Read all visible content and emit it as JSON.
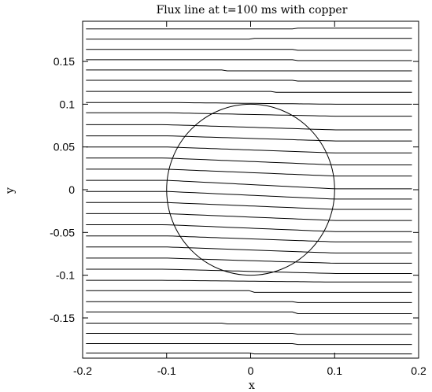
{
  "chart_data": {
    "type": "line",
    "title": "Flux line at t=100 ms with copper",
    "xlabel": "x",
    "ylabel": "y",
    "xlim": [
      -0.2,
      0.2
    ],
    "ylim": [
      -0.197,
      0.197
    ],
    "grid": false,
    "legend": "none",
    "x_ticks": [
      "-0.2",
      "-0.1",
      "0",
      "0.1",
      "0.2"
    ],
    "y_ticks": [
      "-0.15",
      "-0.1",
      "-0.05",
      "0",
      "0.05",
      "0.1",
      "0.15"
    ],
    "x_tick_values": [
      -0.2,
      -0.1,
      0,
      0.1,
      0.2
    ],
    "y_tick_values": [
      -0.15,
      -0.1,
      -0.05,
      0,
      0.05,
      0.1,
      0.15
    ],
    "circle": {
      "center": [
        0,
        0
      ],
      "radius": 0.1
    },
    "flux_lines": [
      {
        "y0": 0.188,
        "y1": 0.189,
        "xs": 0.05
      },
      {
        "y0": 0.176,
        "y1": 0.177,
        "xs": 0.0
      },
      {
        "y0": 0.164,
        "y1": 0.163,
        "xs": 0.05
      },
      {
        "y0": 0.152,
        "y1": 0.151,
        "xs": 0.05
      },
      {
        "y0": 0.14,
        "y1": 0.139,
        "xs": -0.03
      },
      {
        "y0": 0.128,
        "y1": 0.127,
        "xs": 0.05
      },
      {
        "y0": 0.115,
        "y1": 0.114,
        "xs": 0.03
      },
      {
        "y0": 0.102,
        "y1": 0.1,
        "xs": 0.0
      },
      {
        "y0": 0.09,
        "y1": 0.086,
        "xs": 0.0
      },
      {
        "y0": 0.076,
        "y1": 0.07,
        "xs": 0.0
      },
      {
        "y0": 0.063,
        "y1": 0.057,
        "xs": 0.0
      },
      {
        "y0": 0.05,
        "y1": 0.043,
        "xs": 0.0
      },
      {
        "y0": 0.037,
        "y1": 0.029,
        "xs": 0.0
      },
      {
        "y0": 0.024,
        "y1": 0.016,
        "xs": 0.0
      },
      {
        "y0": 0.011,
        "y1": 0.001,
        "xs": 0.0
      },
      {
        "y0": -0.002,
        "y1": -0.011,
        "xs": 0.0
      },
      {
        "y0": -0.015,
        "y1": -0.023,
        "xs": 0.0
      },
      {
        "y0": -0.028,
        "y1": -0.036,
        "xs": 0.0
      },
      {
        "y0": -0.041,
        "y1": -0.049,
        "xs": 0.0
      },
      {
        "y0": -0.054,
        "y1": -0.061,
        "xs": 0.0
      },
      {
        "y0": -0.067,
        "y1": -0.074,
        "xs": 0.0
      },
      {
        "y0": -0.08,
        "y1": -0.086,
        "xs": 0.0
      },
      {
        "y0": -0.093,
        "y1": -0.098,
        "xs": 0.0
      },
      {
        "y0": -0.106,
        "y1": -0.108,
        "xs": 0.0
      },
      {
        "y0": -0.118,
        "y1": -0.12,
        "xs": 0.0
      },
      {
        "y0": -0.131,
        "y1": -0.132,
        "xs": 0.05
      },
      {
        "y0": -0.143,
        "y1": -0.145,
        "xs": 0.05
      },
      {
        "y0": -0.156,
        "y1": -0.157,
        "xs": -0.03
      },
      {
        "y0": -0.168,
        "y1": -0.169,
        "xs": 0.05
      },
      {
        "y0": -0.18,
        "y1": -0.181,
        "xs": 0.05
      },
      {
        "y0": -0.191,
        "y1": -0.192,
        "xs": 0.0
      }
    ]
  }
}
